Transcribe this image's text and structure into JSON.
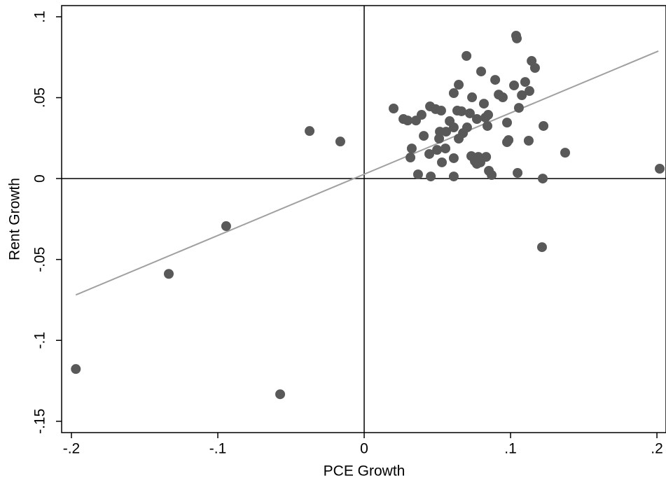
{
  "chart_data": {
    "type": "scatter",
    "xlabel": "PCE Growth",
    "ylabel": "Rent Growth",
    "xlim": [
      -0.2067,
      0.2062
    ],
    "ylim": [
      -0.157,
      0.1069
    ],
    "xticks": [
      {
        "value": -0.2,
        "label": "-.2"
      },
      {
        "value": -0.1,
        "label": "-.1"
      },
      0,
      {
        "value": 0.1,
        "label": ".1"
      },
      {
        "value": 0.2,
        "label": ".2"
      }
    ],
    "yticks": [
      {
        "value": -0.15,
        "label": "-.15"
      },
      {
        "value": -0.1,
        "label": "-.1"
      },
      {
        "value": -0.05,
        "label": "-.05"
      },
      0,
      {
        "value": 0.05,
        "label": ".05"
      },
      {
        "value": 0.1,
        "label": ".1"
      }
    ],
    "reference_lines": {
      "x": 0,
      "y": 0,
      "color": "#000000"
    },
    "series": [
      {
        "color": "#595959",
        "x": [
          -0.197,
          -0.1335,
          -0.0943,
          -0.0574,
          -0.0373,
          -0.0163,
          0.0201,
          0.0268,
          0.0297,
          0.0354,
          0.0392,
          0.045,
          0.0488,
          0.0526,
          0.0407,
          0.0325,
          0.0316,
          0.0368,
          0.0455,
          0.0445,
          0.0498,
          0.0531,
          0.0555,
          0.0517,
          0.056,
          0.0512,
          0.0584,
          0.0612,
          0.0646,
          0.0612,
          0.0636,
          0.0665,
          0.0699,
          0.0703,
          0.0722,
          0.0737,
          0.077,
          0.0799,
          0.0818,
          0.0828,
          0.0847,
          0.0842,
          0.0895,
          0.0919,
          0.0947,
          0.0976,
          0.0986,
          0.0976,
          0.1024,
          0.1038,
          0.1043,
          0.1057,
          0.1077,
          0.11,
          0.1129,
          0.1144,
          0.1167,
          0.1124,
          0.1048,
          0.1225,
          0.122,
          0.1215,
          0.1373,
          0.2019,
          0.0675,
          0.0646,
          0.0612,
          0.0612,
          0.0732,
          0.0756,
          0.078,
          0.0794,
          0.077,
          0.0833,
          0.0852,
          0.0871
        ],
        "values": [
          -0.1177,
          -0.0589,
          -0.0294,
          -0.1333,
          0.0294,
          0.0229,
          0.0433,
          0.0368,
          0.0359,
          0.0359,
          0.0394,
          0.0446,
          0.0429,
          0.042,
          0.0264,
          0.0186,
          0.013,
          0.0026,
          0.0013,
          0.0152,
          0.0177,
          0.01,
          0.0186,
          0.029,
          0.029,
          0.0247,
          0.0355,
          0.0528,
          0.058,
          0.0316,
          0.042,
          0.0416,
          0.0758,
          0.0316,
          0.0403,
          0.0502,
          0.0368,
          0.0662,
          0.0463,
          0.0377,
          0.0394,
          0.0325,
          0.061,
          0.0519,
          0.0502,
          0.0346,
          0.0238,
          0.0225,
          0.0576,
          0.0883,
          0.0866,
          0.0437,
          0.0515,
          0.0597,
          0.0541,
          0.0727,
          0.0684,
          0.0234,
          0.0035,
          0.0325,
          0.0,
          -0.0424,
          0.016,
          0.0061,
          0.0281,
          0.0247,
          0.0013,
          0.0126,
          0.0139,
          0.0108,
          0.0134,
          0.01,
          0.0091,
          0.0134,
          0.0048,
          0.0022
        ]
      }
    ],
    "fit_line": {
      "color": "#a0a0a0",
      "x": [
        -0.197,
        0.201
      ],
      "values": [
        -0.0719,
        0.0788
      ]
    }
  }
}
